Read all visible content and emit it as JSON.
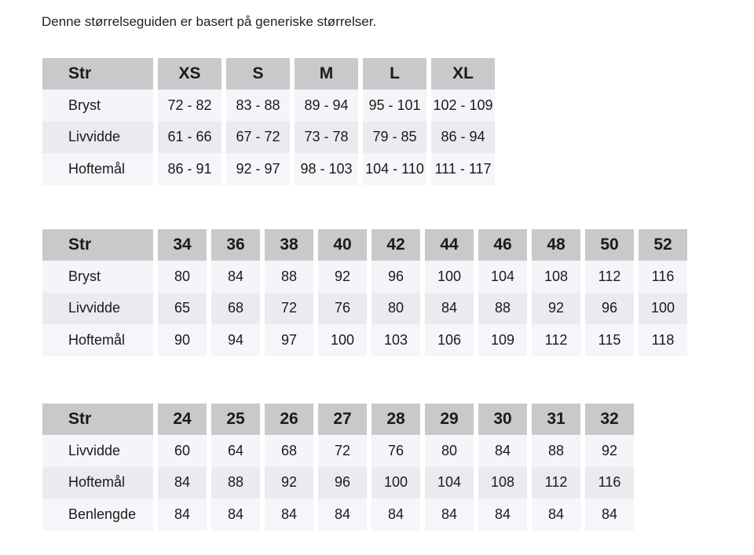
{
  "intro": "Denne størrelseguiden er basert på generiske størrelser.",
  "tables": [
    {
      "header": [
        "Str",
        "XS",
        "S",
        "M",
        "L",
        "XL"
      ],
      "rows": [
        [
          "Bryst",
          "72 - 82",
          "83 - 88",
          "89 - 94",
          "95 - 101",
          "102 - 109"
        ],
        [
          "Livvidde",
          "61 - 66",
          "67 - 72",
          "73 - 78",
          "79 - 85",
          "86 - 94"
        ],
        [
          "Hoftemål",
          "86 - 91",
          "92 - 97",
          "98 - 103",
          "104 - 110",
          "111 - 117"
        ]
      ]
    },
    {
      "header": [
        "Str",
        "34",
        "36",
        "38",
        "40",
        "42",
        "44",
        "46",
        "48",
        "50",
        "52"
      ],
      "rows": [
        [
          "Bryst",
          "80",
          "84",
          "88",
          "92",
          "96",
          "100",
          "104",
          "108",
          "112",
          "116"
        ],
        [
          "Livvidde",
          "65",
          "68",
          "72",
          "76",
          "80",
          "84",
          "88",
          "92",
          "96",
          "100"
        ],
        [
          "Hoftemål",
          "90",
          "94",
          "97",
          "100",
          "103",
          "106",
          "109",
          "112",
          "115",
          "118"
        ]
      ]
    },
    {
      "header": [
        "Str",
        "24",
        "25",
        "26",
        "27",
        "28",
        "29",
        "30",
        "31",
        "32"
      ],
      "rows": [
        [
          "Livvidde",
          "60",
          "64",
          "68",
          "72",
          "76",
          "80",
          "84",
          "88",
          "92"
        ],
        [
          "Hoftemål",
          "84",
          "88",
          "92",
          "96",
          "100",
          "104",
          "108",
          "112",
          "116"
        ],
        [
          "Benlengde",
          "84",
          "84",
          "84",
          "84",
          "84",
          "84",
          "84",
          "84",
          "84"
        ]
      ]
    }
  ]
}
